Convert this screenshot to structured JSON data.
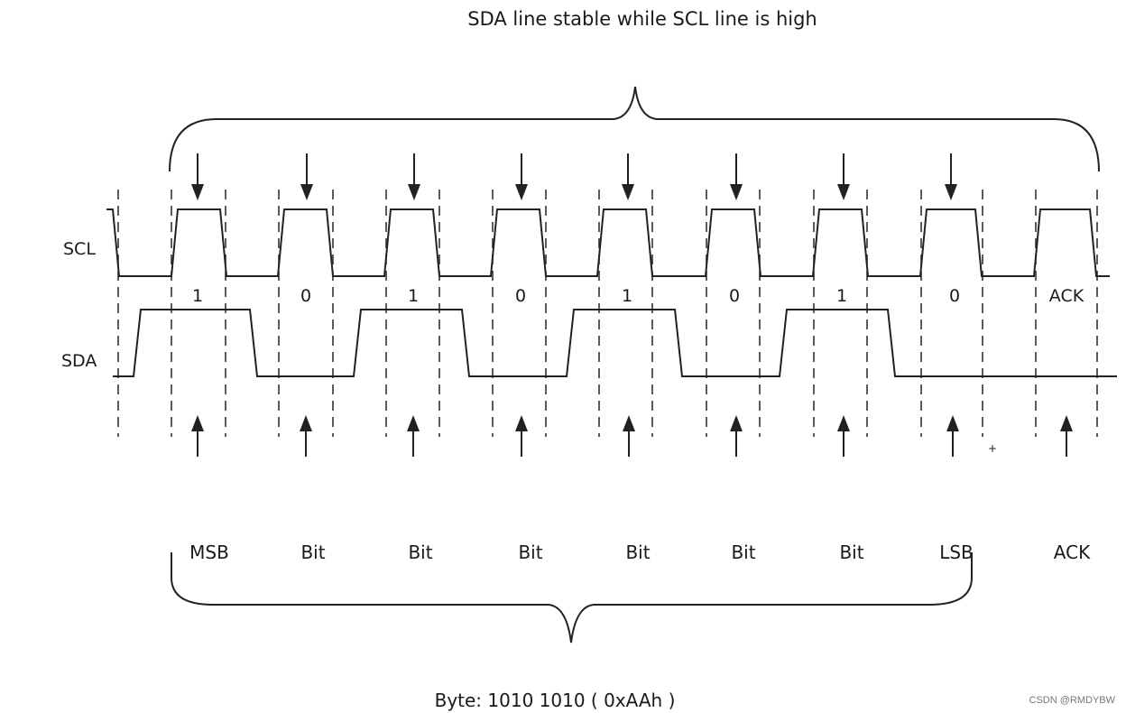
{
  "title": "SDA line stable while SCL line is high",
  "signals": {
    "scl": "SCL",
    "sda": "SDA"
  },
  "bit_values": [
    "1",
    "0",
    "1",
    "0",
    "1",
    "0",
    "1",
    "0",
    "ACK"
  ],
  "bit_names": [
    "MSB",
    "Bit",
    "Bit",
    "Bit",
    "Bit",
    "Bit",
    "Bit",
    "LSB",
    "ACK"
  ],
  "caption": "Byte: 1010 1010 ( 0xAAh )",
  "watermark": "CSDN @RMDYBW",
  "colors": {
    "line": "#222222",
    "background": "#ffffff"
  }
}
